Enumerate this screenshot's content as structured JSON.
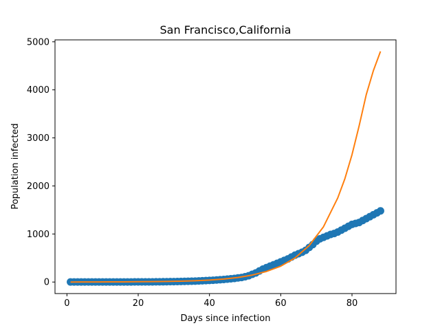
{
  "chart_data": {
    "type": "scatter",
    "title": "San Francisco,California",
    "xlabel": "Days since infection",
    "ylabel": "Population infected",
    "xlim": [
      -3.35,
      92.35
    ],
    "ylim": [
      -240,
      5040
    ],
    "xticks": [
      0,
      20,
      40,
      60,
      80
    ],
    "yticks": [
      0,
      1000,
      2000,
      3000,
      4000,
      5000
    ],
    "grid": false,
    "colors": {
      "observed": "#1f77b4",
      "fit": "#ff7f0e"
    },
    "series": [
      {
        "kind": "scatter",
        "x": [
          1,
          2,
          3,
          4,
          5,
          6,
          7,
          8,
          9,
          10,
          11,
          12,
          13,
          14,
          15,
          16,
          17,
          18,
          19,
          20,
          21,
          22,
          23,
          24,
          25,
          26,
          27,
          28,
          29,
          30,
          31,
          32,
          33,
          34,
          35,
          36,
          37,
          38,
          39,
          40,
          41,
          42,
          43,
          44,
          45,
          46,
          47,
          48,
          49,
          50,
          51,
          52,
          53,
          54,
          55,
          56,
          57,
          58,
          59,
          60,
          61,
          62,
          63,
          64,
          65,
          66,
          67,
          68,
          69,
          70,
          71,
          72,
          73,
          74,
          75,
          76,
          77,
          78,
          79,
          80,
          81,
          82,
          83,
          84,
          85,
          86,
          87,
          88
        ],
        "y": [
          2,
          2,
          2,
          2,
          2,
          2,
          2,
          2,
          2,
          2,
          2,
          2,
          2,
          2,
          2,
          2,
          2,
          2,
          3,
          3,
          3,
          3,
          4,
          4,
          5,
          5,
          6,
          7,
          8,
          9,
          10,
          12,
          14,
          16,
          18,
          20,
          23,
          26,
          30,
          34,
          38,
          43,
          48,
          53,
          60,
          67,
          75,
          85,
          95,
          110,
          130,
          160,
          190,
          230,
          270,
          300,
          330,
          360,
          390,
          420,
          450,
          480,
          520,
          560,
          590,
          620,
          660,
          720,
          780,
          850,
          900,
          930,
          960,
          990,
          1010,
          1040,
          1080,
          1120,
          1160,
          1200,
          1220,
          1240,
          1280,
          1320,
          1360,
          1400,
          1440,
          1480
        ]
      },
      {
        "kind": "line",
        "x": [
          1,
          4,
          8,
          12,
          16,
          20,
          24,
          28,
          32,
          36,
          40,
          44,
          48,
          52,
          56,
          60,
          64,
          68,
          72,
          76,
          78,
          80,
          82,
          84,
          86,
          88
        ],
        "y": [
          0,
          1,
          2,
          3,
          4,
          6,
          8,
          12,
          18,
          26,
          40,
          62,
          95,
          145,
          220,
          330,
          500,
          760,
          1150,
          1750,
          2150,
          2650,
          3250,
          3900,
          4400,
          4800
        ]
      }
    ]
  }
}
